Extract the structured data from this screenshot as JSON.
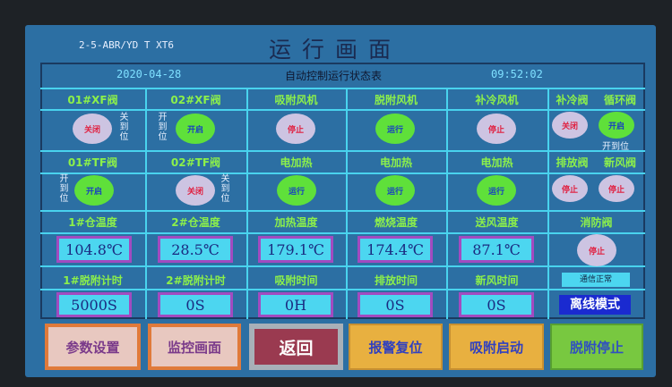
{
  "header": {
    "model": "2-5-ABR/YD T XT6",
    "title": "运行画面",
    "date": "2020-04-28",
    "table_title": "自动控制运行状态表",
    "time": "09:52:02"
  },
  "row1": {
    "labels": [
      "01#XF阀",
      "02#XF阀",
      "吸附风机",
      "脱附风机",
      "补冷风机",
      "补冷阀",
      "循环阀"
    ],
    "states": [
      "关闭",
      "开启",
      "停止",
      "运行",
      "停止",
      "关闭",
      "开启"
    ],
    "side": [
      "关到位",
      "开到位",
      "开到位"
    ]
  },
  "row2": {
    "labels": [
      "01#TF阀",
      "02#TF阀",
      "电加热",
      "电加热",
      "电加热",
      "排放阀",
      "新风阀"
    ],
    "states": [
      "开启",
      "关闭",
      "运行",
      "运行",
      "运行",
      "停止",
      "停止"
    ],
    "side": [
      "开到位",
      "关到位"
    ]
  },
  "row3": {
    "labels": [
      "1#仓温度",
      "2#仓温度",
      "加热温度",
      "燃烧温度",
      "送风温度",
      "消防阀"
    ],
    "values": [
      "104.8℃",
      "28.5℃",
      "179.1℃",
      "174.4℃",
      "87.1℃"
    ],
    "fire_valve_state": "停止"
  },
  "row4": {
    "labels": [
      "1#脱附计时",
      "2#脱附计时",
      "吸附时间",
      "排放时间",
      "新风时间"
    ],
    "values": [
      "5000S",
      "0S",
      "0H",
      "0S",
      "0S"
    ],
    "comm_status": "通信正常",
    "mode": "离线模式"
  },
  "buttons": [
    "参数设置",
    "监控画面",
    "返回",
    "报警复位",
    "吸附启动",
    "脱附停止"
  ],
  "colors": {
    "on": "#5fe03a",
    "off": "#cdc4e2",
    "background": "#2c6fa3",
    "grid": "#49d3ee"
  }
}
